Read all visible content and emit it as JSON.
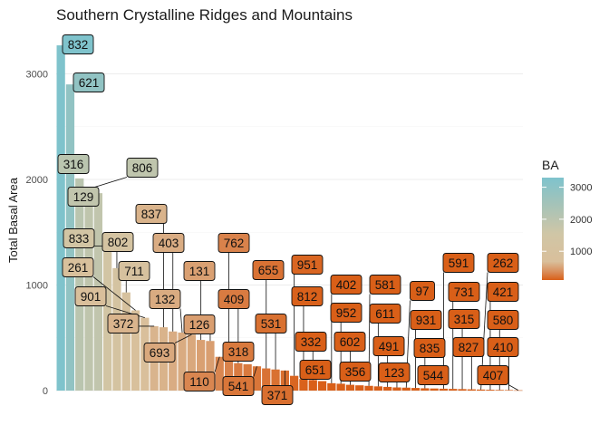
{
  "chart_data": {
    "type": "bar",
    "title": "Southern Crystalline Ridges and Mountains",
    "xlabel": "",
    "ylabel": "Total Basal Area",
    "ylim": [
      0,
      3300
    ],
    "yticks": [
      0,
      1000,
      2000,
      3000
    ],
    "grid": true,
    "categories": [
      "832",
      "621",
      "316",
      "806",
      "129",
      "833",
      "802",
      "711",
      "261",
      "901",
      "372",
      "837",
      "403",
      "132",
      "693",
      "131",
      "126",
      "110",
      "762",
      "409",
      "318",
      "541",
      "655",
      "531",
      "371",
      "951",
      "812",
      "332",
      "651",
      "402",
      "952",
      "602",
      "356",
      "581",
      "611",
      "491",
      "123",
      "97",
      "931",
      "835",
      "544",
      "591",
      "731",
      "315",
      "827",
      "262",
      "421",
      "580",
      "410",
      "407"
    ],
    "values": [
      3270,
      2900,
      2010,
      1910,
      1870,
      1370,
      1160,
      930,
      760,
      690,
      610,
      600,
      560,
      550,
      530,
      480,
      470,
      320,
      300,
      260,
      250,
      230,
      210,
      200,
      190,
      140,
      110,
      100,
      90,
      70,
      65,
      55,
      50,
      45,
      40,
      35,
      30,
      28,
      25,
      22,
      20,
      18,
      16,
      14,
      12,
      10,
      8,
      6,
      5,
      3
    ],
    "legend": {
      "title": "BA",
      "ticks": [
        1000,
        2000,
        3000
      ],
      "range": [
        100,
        3300
      ],
      "position": "right"
    },
    "colors": {
      "low": "#d95f18",
      "mid": "#d6c4a2",
      "high": "#7ec3cd",
      "grid": "#ececec",
      "label_border": "#111111"
    }
  }
}
